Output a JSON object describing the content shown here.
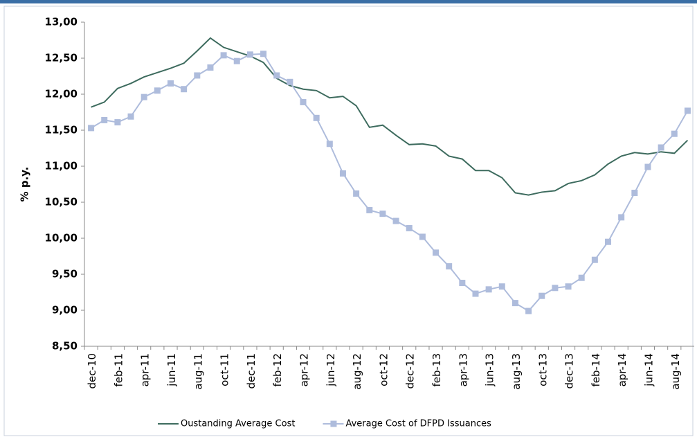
{
  "chart_data": {
    "type": "line",
    "y_label": "% p.y.",
    "categories": [
      "dec-10",
      null,
      "feb-11",
      null,
      "apr-11",
      null,
      "jun-11",
      null,
      "aug-11",
      null,
      "oct-11",
      null,
      "dec-11",
      null,
      "feb-12",
      null,
      "apr-12",
      null,
      "jun-12",
      null,
      "aug-12",
      null,
      "oct-12",
      null,
      "dec-12",
      null,
      "feb-13",
      null,
      "apr-13",
      null,
      "jun-13",
      null,
      "aug-13",
      null,
      "oct-13",
      null,
      "dec-13",
      null,
      "feb-14",
      null,
      "apr-14",
      null,
      "jun-14",
      null,
      "aug-14",
      null
    ],
    "series": [
      {
        "name": "Oustanding Average Cost",
        "color": "#3d6b5e",
        "marker": false,
        "values": [
          11.82,
          11.89,
          12.08,
          12.15,
          12.24,
          12.3,
          12.36,
          12.43,
          12.6,
          12.78,
          12.65,
          12.59,
          12.53,
          12.44,
          12.22,
          12.12,
          12.07,
          12.05,
          11.95,
          11.97,
          11.84,
          11.54,
          11.57,
          11.43,
          11.3,
          11.31,
          11.28,
          11.14,
          11.1,
          10.94,
          10.94,
          10.84,
          10.63,
          10.6,
          10.64,
          10.66,
          10.76,
          10.8,
          10.88,
          11.03,
          11.14,
          11.19,
          11.17,
          11.2,
          11.18,
          11.36
        ]
      },
      {
        "name": "Average Cost of DFPD Issuances",
        "color": "#aebcdc",
        "marker": true,
        "values": [
          11.53,
          11.64,
          11.61,
          11.69,
          11.96,
          12.05,
          12.15,
          12.07,
          12.26,
          12.37,
          12.54,
          12.46,
          12.55,
          12.56,
          12.26,
          12.17,
          11.89,
          11.67,
          11.31,
          10.9,
          10.62,
          10.39,
          10.34,
          10.24,
          10.14,
          10.02,
          9.8,
          9.61,
          9.38,
          9.23,
          9.29,
          9.33,
          9.1,
          8.99,
          9.2,
          9.31,
          9.33,
          9.45,
          9.7,
          9.95,
          10.29,
          10.63,
          10.99,
          11.26,
          11.45,
          11.77
        ]
      }
    ],
    "ylim": [
      8.5,
      13
    ],
    "yticks": [
      {
        "value": 8.5,
        "label": "8,50"
      },
      {
        "value": 9,
        "label": "9,00"
      },
      {
        "value": 9.5,
        "label": "9,50"
      },
      {
        "value": 10,
        "label": "10,00"
      },
      {
        "value": 10.5,
        "label": "10,50"
      },
      {
        "value": 11,
        "label": "11,00"
      },
      {
        "value": 11.5,
        "label": "11,50"
      },
      {
        "value": 12,
        "label": "12,00"
      },
      {
        "value": 12.5,
        "label": "12,50"
      },
      {
        "value": 13,
        "label": "13,00"
      }
    ],
    "grid": false
  }
}
